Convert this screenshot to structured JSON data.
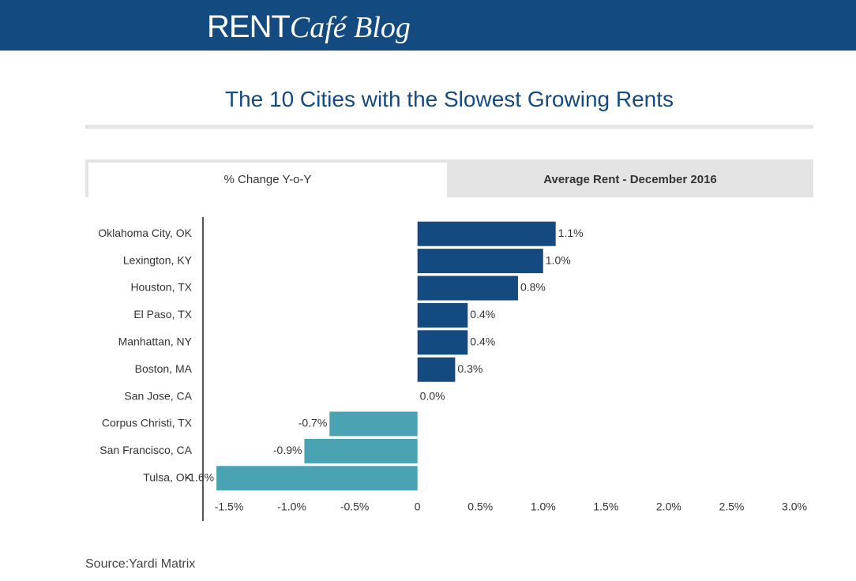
{
  "header": {
    "logo": "RENT",
    "logo_script": "Café Blog"
  },
  "tabs": [
    "% Change Y-o-Y",
    "Average Rent - December 2016"
  ],
  "chart_data": {
    "type": "bar",
    "orientation": "horizontal",
    "title": "The 10 Cities with the Slowest Growing Rents",
    "categories": [
      "Oklahoma City, OK",
      "Lexington, KY",
      "Houston, TX",
      "El Paso, TX",
      "Manhattan, NY",
      "Boston, MA",
      "San Jose, CA",
      "Corpus Christi, TX",
      "San Francisco, CA",
      "Tulsa, OK"
    ],
    "values": [
      1.1,
      1.0,
      0.8,
      0.4,
      0.4,
      0.3,
      0.0,
      -0.7,
      -0.9,
      -1.6
    ],
    "value_labels": [
      "1.1%",
      "1.0%",
      "0.8%",
      "0.4%",
      "0.4%",
      "0.3%",
      "0.0%",
      "-0.7%",
      "-0.9%",
      "-1.6%"
    ],
    "color_positive": "#134a80",
    "color_negative": "#4aa3b2",
    "xlim": [
      -1.5,
      3.0
    ],
    "xticks": [
      {
        "value": -1.5,
        "label": "-1.5%"
      },
      {
        "value": -1.0,
        "label": "-1.0%"
      },
      {
        "value": -0.5,
        "label": "-0.5%"
      },
      0,
      {
        "value": 0.5,
        "label": "0.5%"
      },
      {
        "value": 1.0,
        "label": "1.0%"
      },
      {
        "value": 1.5,
        "label": "1.5%"
      },
      {
        "value": 2.0,
        "label": "2.0%"
      },
      {
        "value": 2.5,
        "label": "2.5%"
      },
      {
        "value": 3.0,
        "label": "3.0%"
      }
    ]
  },
  "source": "Source:Yardi Matrix"
}
